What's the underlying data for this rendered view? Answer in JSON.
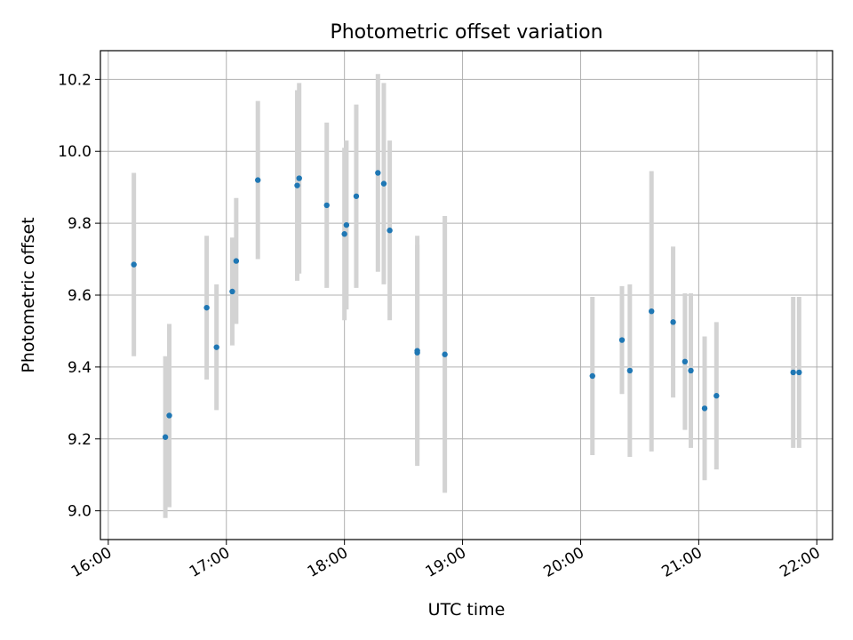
{
  "chart_data": {
    "type": "scatter",
    "title": "Photometric offset variation",
    "xlabel": "UTC time",
    "ylabel": "Photometric offset",
    "x_tick_labels": [
      "16:00",
      "17:00",
      "18:00",
      "19:00",
      "20:00",
      "21:00",
      "22:00"
    ],
    "y_tick_labels": [
      "9.0",
      "9.2",
      "9.4",
      "9.6",
      "9.8",
      "10.0",
      "10.2"
    ],
    "xlim": [
      "15:56",
      "22:08"
    ],
    "ylim": [
      8.92,
      10.28
    ],
    "grid": true,
    "marker_color": "#1f77b4",
    "errorbar_color": "#d3d3d3",
    "points": [
      {
        "x": "16:13",
        "y": 9.685,
        "err": 0.255
      },
      {
        "x": "16:29",
        "y": 9.205,
        "err": 0.225
      },
      {
        "x": "16:31",
        "y": 9.265,
        "err": 0.255
      },
      {
        "x": "16:50",
        "y": 9.565,
        "err": 0.2
      },
      {
        "x": "16:55",
        "y": 9.455,
        "err": 0.175
      },
      {
        "x": "17:03",
        "y": 9.61,
        "err": 0.15
      },
      {
        "x": "17:05",
        "y": 9.695,
        "err": 0.175
      },
      {
        "x": "17:16",
        "y": 9.92,
        "err": 0.22
      },
      {
        "x": "17:36",
        "y": 9.905,
        "err": 0.265
      },
      {
        "x": "17:37",
        "y": 9.925,
        "err": 0.265
      },
      {
        "x": "17:51",
        "y": 9.85,
        "err": 0.23
      },
      {
        "x": "18:00",
        "y": 9.77,
        "err": 0.24
      },
      {
        "x": "18:01",
        "y": 9.795,
        "err": 0.235
      },
      {
        "x": "18:06",
        "y": 9.875,
        "err": 0.255
      },
      {
        "x": "18:17",
        "y": 9.94,
        "err": 0.275
      },
      {
        "x": "18:20",
        "y": 9.91,
        "err": 0.28
      },
      {
        "x": "18:23",
        "y": 9.78,
        "err": 0.25
      },
      {
        "x": "18:37",
        "y": 9.445,
        "err": 0.32
      },
      {
        "x": "18:37",
        "y": 9.44,
        "err": 0.3
      },
      {
        "x": "18:51",
        "y": 9.435,
        "err": 0.385
      },
      {
        "x": "20:06",
        "y": 9.375,
        "err": 0.22
      },
      {
        "x": "20:21",
        "y": 9.475,
        "err": 0.15
      },
      {
        "x": "20:25",
        "y": 9.39,
        "err": 0.24
      },
      {
        "x": "20:36",
        "y": 9.555,
        "err": 0.39
      },
      {
        "x": "20:47",
        "y": 9.525,
        "err": 0.21
      },
      {
        "x": "20:53",
        "y": 9.415,
        "err": 0.19
      },
      {
        "x": "20:56",
        "y": 9.39,
        "err": 0.215
      },
      {
        "x": "21:03",
        "y": 9.285,
        "err": 0.2
      },
      {
        "x": "21:09",
        "y": 9.32,
        "err": 0.205
      },
      {
        "x": "21:48",
        "y": 9.385,
        "err": 0.21
      },
      {
        "x": "21:51",
        "y": 9.385,
        "err": 0.21
      }
    ]
  }
}
